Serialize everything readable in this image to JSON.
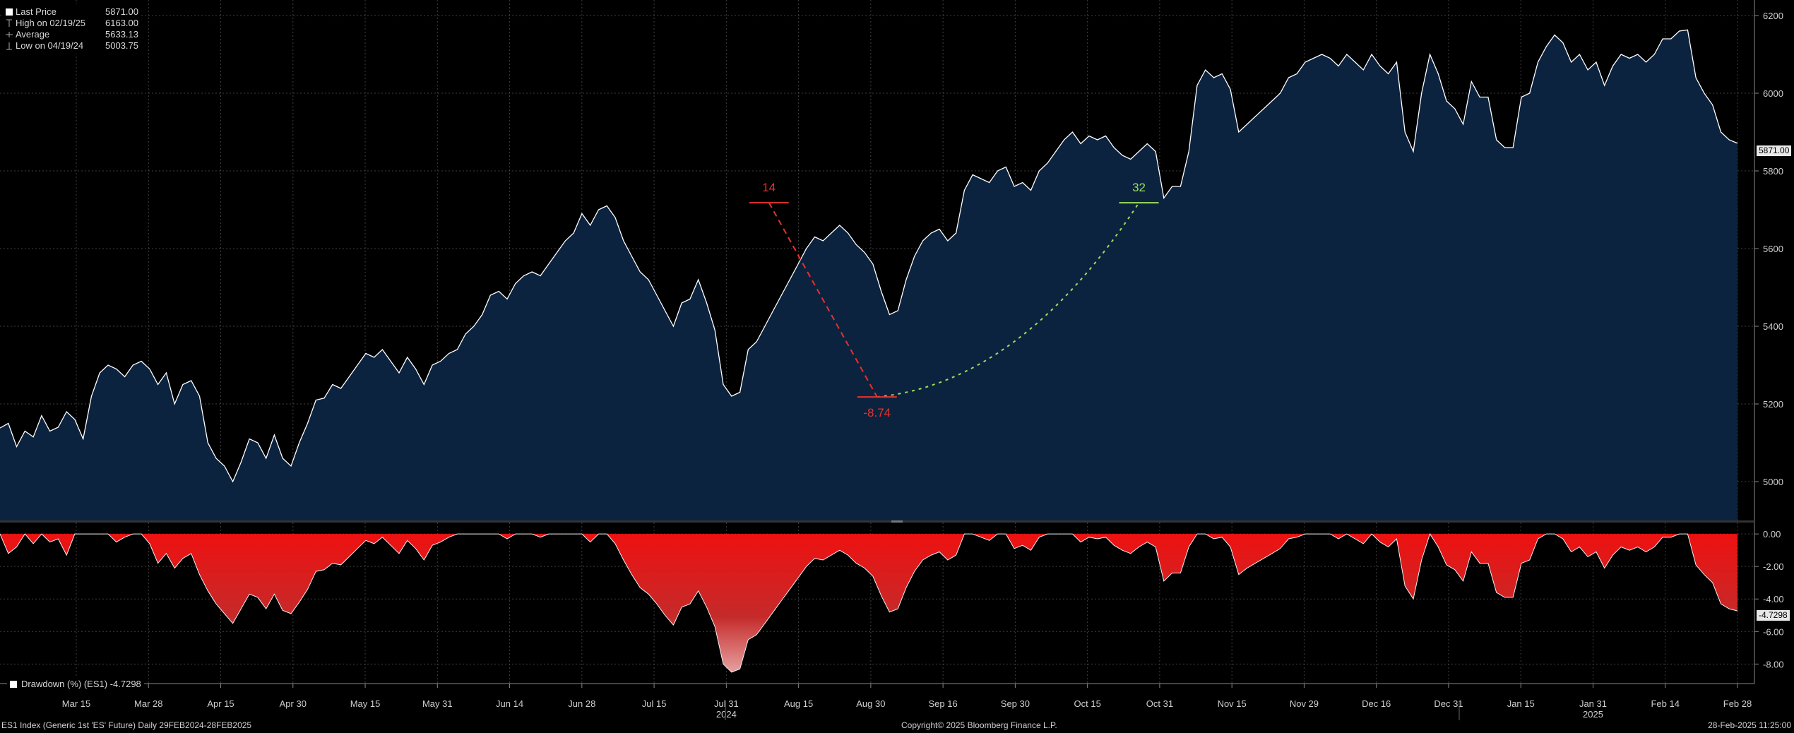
{
  "legend": {
    "rows": [
      {
        "label": "Last Price",
        "value": "5871.00"
      },
      {
        "label": "High on 02/19/25",
        "value": "6163.00"
      },
      {
        "label": "Average",
        "value": "5633.13"
      },
      {
        "label": "Low on 04/19/24",
        "value": "5003.75"
      }
    ]
  },
  "sub_legend": {
    "label": "Drawdown (%) (ES1) -4.7298"
  },
  "footer": {
    "left": "ES1 Index (Generic 1st 'ES' Future)  Daily 29FEB2024-28FEB2025",
    "center": "Copyright© 2025 Bloomberg Finance L.P.",
    "right": "28-Feb-2025 11:25:00"
  },
  "price_tag": "5871.00",
  "drawdown_tag": "-4.7298",
  "colors": {
    "background": "#000000",
    "price_line": "#ffffff",
    "price_fill": "#0c2340",
    "drawdown_fill": "#ee1111",
    "annotation_red": "#e8322b",
    "annotation_green": "#9be05a",
    "grid": "#5a5a5a"
  },
  "chart_data": [
    {
      "type": "area",
      "name": "ES1 Index Last Price",
      "x_ticks": [
        "Mar 15",
        "Mar 28",
        "Apr 15",
        "Apr 30",
        "May 15",
        "May 31",
        "Jun 14",
        "Jun 28",
        "Jul 15",
        "Jul 31",
        "Aug 15",
        "Aug 30",
        "Sep 16",
        "Sep 30",
        "Oct 15",
        "Oct 31",
        "Nov 15",
        "Nov 29",
        "Dec 16",
        "Dec 31",
        "Jan 15",
        "Jan 31",
        "Feb 14",
        "Feb 28"
      ],
      "year_labels": [
        {
          "label": "2024",
          "at": "Jul 31"
        },
        {
          "label": "2025",
          "at": "Jan 31"
        }
      ],
      "y_ticks": [
        5000,
        5200,
        5400,
        5600,
        5800,
        6000,
        6200
      ],
      "ylim": [
        4900,
        6240
      ],
      "grid": true,
      "annotations": [
        {
          "label": "14",
          "color": "red",
          "x": 92.5,
          "y": 5718
        },
        {
          "label": "-8.74",
          "color": "red",
          "x": 105.5,
          "y": 5218
        },
        {
          "label": "32",
          "color": "green",
          "x": 137,
          "y": 5718
        }
      ],
      "values": [
        5138,
        5150,
        5090,
        5130,
        5115,
        5170,
        5130,
        5140,
        5180,
        5160,
        5110,
        5220,
        5280,
        5300,
        5290,
        5270,
        5300,
        5310,
        5290,
        5250,
        5280,
        5200,
        5250,
        5260,
        5220,
        5100,
        5060,
        5040,
        5000,
        5050,
        5110,
        5100,
        5060,
        5120,
        5060,
        5040,
        5100,
        5150,
        5210,
        5215,
        5250,
        5240,
        5270,
        5300,
        5330,
        5320,
        5340,
        5310,
        5280,
        5320,
        5290,
        5250,
        5300,
        5310,
        5330,
        5340,
        5380,
        5400,
        5430,
        5480,
        5490,
        5470,
        5510,
        5530,
        5540,
        5530,
        5560,
        5590,
        5620,
        5640,
        5690,
        5660,
        5700,
        5710,
        5680,
        5620,
        5580,
        5540,
        5520,
        5480,
        5440,
        5400,
        5460,
        5470,
        5520,
        5460,
        5390,
        5250,
        5220,
        5230,
        5340,
        5360,
        5400,
        5440,
        5480,
        5520,
        5560,
        5600,
        5630,
        5620,
        5640,
        5660,
        5640,
        5610,
        5590,
        5560,
        5490,
        5430,
        5440,
        5520,
        5580,
        5620,
        5640,
        5650,
        5620,
        5640,
        5750,
        5790,
        5780,
        5770,
        5800,
        5810,
        5760,
        5770,
        5750,
        5800,
        5820,
        5850,
        5880,
        5900,
        5870,
        5890,
        5880,
        5890,
        5860,
        5840,
        5830,
        5850,
        5870,
        5850,
        5730,
        5760,
        5760,
        5850,
        6020,
        6060,
        6040,
        6050,
        6010,
        5900,
        5920,
        5940,
        5960,
        5980,
        6000,
        6040,
        6050,
        6080,
        6090,
        6100,
        6090,
        6070,
        6100,
        6080,
        6060,
        6100,
        6070,
        6050,
        6080,
        5900,
        5850,
        6000,
        6100,
        6050,
        5980,
        5960,
        5920,
        6030,
        5990,
        5990,
        5880,
        5860,
        5860,
        5990,
        6000,
        6080,
        6120,
        6150,
        6130,
        6080,
        6100,
        6060,
        6080,
        6020,
        6070,
        6100,
        6090,
        6100,
        6080,
        6100,
        6140,
        6140,
        6160,
        6163,
        6040,
        6000,
        5970,
        5900,
        5880,
        5871
      ],
      "last_value": 5871.0
    },
    {
      "type": "area",
      "name": "Drawdown (%) (ES1)",
      "y_ticks": [
        0.0,
        -2.0,
        -4.0,
        -6.0,
        -8.0
      ],
      "ylim": [
        -9.2,
        0.7
      ],
      "values": [
        0,
        -1.2,
        -0.8,
        0,
        -0.6,
        0,
        -0.5,
        -0.3,
        -1.3,
        0,
        0,
        0,
        0,
        0,
        -0.5,
        -0.2,
        0,
        0,
        -0.6,
        -1.8,
        -1.2,
        -2.1,
        -1.5,
        -1.2,
        -2.5,
        -3.5,
        -4.3,
        -4.9,
        -5.5,
        -4.6,
        -3.7,
        -3.9,
        -4.6,
        -3.7,
        -4.7,
        -4.9,
        -4.2,
        -3.4,
        -2.3,
        -2.2,
        -1.8,
        -1.9,
        -1.4,
        -0.9,
        -0.4,
        -0.6,
        -0.2,
        -0.7,
        -1.2,
        -0.4,
        -0.9,
        -1.6,
        -0.7,
        -0.5,
        -0.2,
        0,
        0,
        0,
        0,
        0,
        0,
        -0.3,
        0,
        0,
        0,
        -0.2,
        0,
        0,
        0,
        0,
        0,
        -0.5,
        0,
        0,
        -0.6,
        -1.6,
        -2.5,
        -3.3,
        -3.7,
        -4.3,
        -5.0,
        -5.6,
        -4.5,
        -4.3,
        -3.5,
        -4.5,
        -5.7,
        -8.0,
        -8.5,
        -8.3,
        -6.5,
        -6.2,
        -5.5,
        -4.8,
        -4.1,
        -3.4,
        -2.7,
        -2.0,
        -1.5,
        -1.6,
        -1.3,
        -1.0,
        -1.3,
        -1.8,
        -2.1,
        -2.6,
        -3.8,
        -4.8,
        -4.6,
        -3.3,
        -2.3,
        -1.6,
        -1.3,
        -1.1,
        -1.6,
        -1.3,
        0,
        0,
        -0.2,
        -0.4,
        0,
        0,
        -0.9,
        -0.7,
        -1.0,
        -0.2,
        0,
        0,
        0,
        0,
        -0.5,
        -0.2,
        -0.3,
        -0.2,
        -0.7,
        -1.0,
        -1.2,
        -0.8,
        -0.5,
        -0.8,
        -2.9,
        -2.4,
        -2.4,
        -0.8,
        0,
        0,
        -0.3,
        -0.2,
        -0.8,
        -2.5,
        -2.1,
        -1.8,
        -1.5,
        -1.2,
        -0.9,
        -0.3,
        -0.2,
        0,
        0,
        0,
        0,
        -0.3,
        0,
        -0.3,
        -0.6,
        0,
        -0.5,
        -0.8,
        -0.3,
        -3.2,
        -4.0,
        -1.6,
        0,
        -0.8,
        -1.9,
        -2.2,
        -2.9,
        -1.1,
        -1.8,
        -1.8,
        -3.6,
        -3.9,
        -3.9,
        -1.8,
        -1.6,
        -0.3,
        0,
        0,
        -0.3,
        -1.1,
        -0.8,
        -1.4,
        -1.1,
        -2.1,
        -1.3,
        -0.8,
        -1.0,
        -0.8,
        -1.1,
        -0.8,
        -0.2,
        -0.2,
        0,
        0,
        -1.9,
        -2.5,
        -3.0,
        -4.3,
        -4.6,
        -4.73
      ]
    }
  ]
}
